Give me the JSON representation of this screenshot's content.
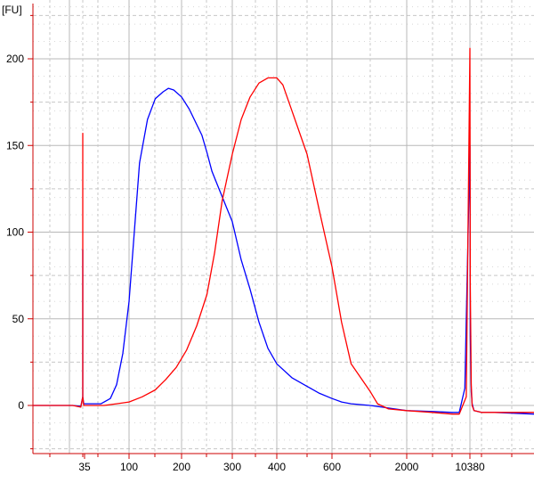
{
  "chart_data": {
    "type": "line",
    "title": "",
    "xlabel": "",
    "ylabel": "[FU]",
    "x_unit": "bp",
    "x_scale": "nonlinear (electropherogram)",
    "ylim": [
      -27,
      233
    ],
    "grid": true,
    "y_ticks": [
      0,
      50,
      100,
      150,
      200
    ],
    "x_ticks": [
      "35",
      "100",
      "200",
      "300",
      "400",
      "600",
      "2000",
      "10380"
    ],
    "colors": {
      "axis": "#cc0000",
      "grid_major": "#b8b8b8",
      "grid_minor": "#c8c8c8"
    },
    "series": [
      {
        "color": "#0000ff",
        "points": [
          [
            10,
            0
          ],
          [
            30,
            0
          ],
          [
            34,
            -0.5
          ],
          [
            35,
            5
          ],
          [
            35,
            90
          ],
          [
            35,
            5
          ],
          [
            36,
            1
          ],
          [
            55,
            1
          ],
          [
            70,
            4
          ],
          [
            80,
            12
          ],
          [
            90,
            30
          ],
          [
            100,
            60
          ],
          [
            110,
            100
          ],
          [
            120,
            140
          ],
          [
            135,
            165
          ],
          [
            150,
            177
          ],
          [
            165,
            181
          ],
          [
            175,
            183
          ],
          [
            185,
            182
          ],
          [
            200,
            178
          ],
          [
            215,
            171
          ],
          [
            230,
            162
          ],
          [
            240,
            156
          ],
          [
            250,
            146
          ],
          [
            260,
            135
          ],
          [
            275,
            124
          ],
          [
            300,
            106
          ],
          [
            320,
            84
          ],
          [
            340,
            67
          ],
          [
            360,
            48
          ],
          [
            380,
            33
          ],
          [
            400,
            24
          ],
          [
            450,
            16
          ],
          [
            500,
            11
          ],
          [
            550,
            7
          ],
          [
            600,
            4
          ],
          [
            700,
            2
          ],
          [
            800,
            1
          ],
          [
            1000,
            0
          ],
          [
            1500,
            -1.5
          ],
          [
            2000,
            -3
          ],
          [
            4000,
            -3.5
          ],
          [
            8000,
            -4
          ],
          [
            10000,
            -4
          ],
          [
            10200,
            10
          ],
          [
            10380,
            150
          ],
          [
            10400,
            40
          ],
          [
            10450,
            8
          ],
          [
            10500,
            1
          ],
          [
            10600,
            -3
          ],
          [
            11000,
            -4
          ],
          [
            12000,
            -4
          ],
          [
            15000,
            -5
          ]
        ]
      },
      {
        "color": "#ff0000",
        "points": [
          [
            10,
            0
          ],
          [
            30,
            0
          ],
          [
            34,
            -1
          ],
          [
            35,
            5
          ],
          [
            35,
            157
          ],
          [
            35,
            5
          ],
          [
            36,
            0
          ],
          [
            60,
            0
          ],
          [
            80,
            1
          ],
          [
            100,
            2
          ],
          [
            125,
            5
          ],
          [
            150,
            9
          ],
          [
            170,
            15
          ],
          [
            190,
            22
          ],
          [
            210,
            32
          ],
          [
            230,
            46
          ],
          [
            250,
            64
          ],
          [
            265,
            88
          ],
          [
            280,
            118
          ],
          [
            300,
            145
          ],
          [
            320,
            165
          ],
          [
            340,
            178
          ],
          [
            360,
            186
          ],
          [
            380,
            189
          ],
          [
            400,
            189
          ],
          [
            420,
            185
          ],
          [
            450,
            170
          ],
          [
            500,
            145
          ],
          [
            550,
            112
          ],
          [
            600,
            80
          ],
          [
            700,
            48
          ],
          [
            800,
            24
          ],
          [
            1000,
            8
          ],
          [
            1200,
            1
          ],
          [
            1500,
            -2
          ],
          [
            2000,
            -3
          ],
          [
            4000,
            -4
          ],
          [
            8000,
            -5
          ],
          [
            10000,
            -5
          ],
          [
            10250,
            5
          ],
          [
            10380,
            206
          ],
          [
            10400,
            70
          ],
          [
            10450,
            12
          ],
          [
            10500,
            0
          ],
          [
            10600,
            -3
          ],
          [
            11000,
            -4
          ],
          [
            12000,
            -4
          ],
          [
            15000,
            -4
          ]
        ]
      }
    ]
  }
}
